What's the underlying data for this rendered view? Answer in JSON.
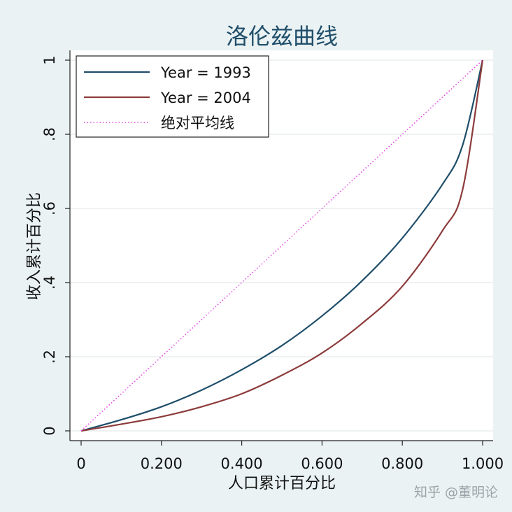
{
  "chart_data": {
    "type": "line",
    "title": "洛伦兹曲线",
    "xlabel": "人口累计百分比",
    "ylabel": "收入累计百分比",
    "xlim": [
      0,
      1
    ],
    "ylim": [
      0,
      1
    ],
    "x_ticks": [
      0,
      0.2,
      0.4,
      0.6,
      0.8,
      1.0
    ],
    "x_tick_labels": [
      "0",
      "0.200",
      "0.400",
      "0.600",
      "0.800",
      "1.000"
    ],
    "y_ticks": [
      0,
      0.2,
      0.4,
      0.6,
      0.8,
      1.0
    ],
    "y_tick_labels": [
      "0",
      ".2",
      ".4",
      ".6",
      ".8",
      "1"
    ],
    "grid": true,
    "legend_position": "top-left",
    "series": [
      {
        "name": "Year = 1993",
        "color": "#1f4e6a",
        "style": "solid",
        "x": [
          0,
          0.1,
          0.2,
          0.3,
          0.4,
          0.5,
          0.6,
          0.7,
          0.8,
          0.9,
          0.95,
          1.0
        ],
        "y": [
          0,
          0.03,
          0.065,
          0.11,
          0.165,
          0.23,
          0.31,
          0.405,
          0.52,
          0.665,
          0.77,
          1.0
        ]
      },
      {
        "name": "Year = 2004",
        "color": "#8c3b3b",
        "style": "solid",
        "x": [
          0,
          0.1,
          0.2,
          0.3,
          0.4,
          0.5,
          0.6,
          0.7,
          0.8,
          0.9,
          0.95,
          1.0
        ],
        "y": [
          0,
          0.018,
          0.038,
          0.065,
          0.1,
          0.15,
          0.21,
          0.29,
          0.39,
          0.54,
          0.65,
          1.0
        ]
      },
      {
        "name": "绝对平均线",
        "color": "#e54be5",
        "style": "dotted",
        "x": [
          0,
          1
        ],
        "y": [
          0,
          1
        ]
      }
    ]
  },
  "watermark": "知乎 @董明论"
}
